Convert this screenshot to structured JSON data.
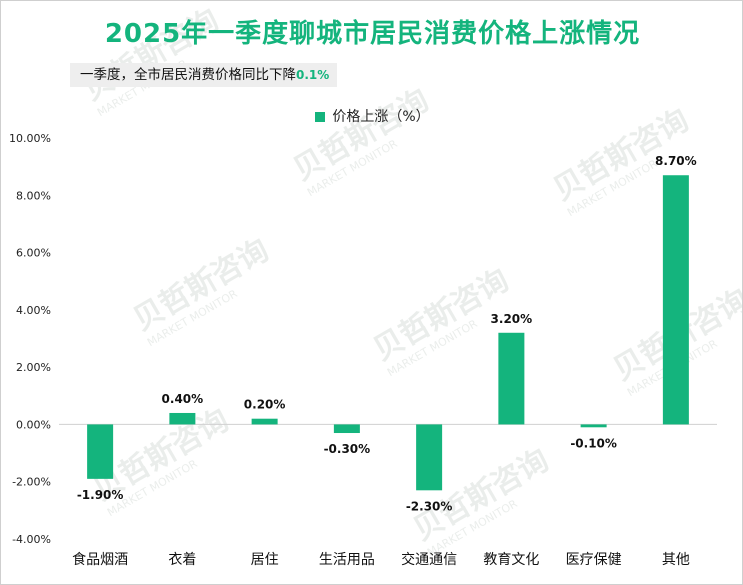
{
  "title": "2025年一季度聊城市居民消费价格上涨情况",
  "subtitle": {
    "text": "一季度，全市居民消费价格同比下降",
    "value": "0.1%"
  },
  "watermark": {
    "cn": "贝哲斯咨询",
    "en": "MARKET MONITOR"
  },
  "colors": {
    "accent": "#14b47d",
    "bar": "#14b47d"
  },
  "chart_data": {
    "type": "bar",
    "title": "2025年一季度聊城市居民消费价格上涨情况",
    "legend": [
      "价格上涨（%）"
    ],
    "legend_position": "top-center",
    "categories": [
      "食品烟酒",
      "衣着",
      "居住",
      "生活用品",
      "交通通信",
      "教育文化",
      "医疗保健",
      "其他"
    ],
    "series": [
      {
        "name": "价格上涨（%）",
        "values": [
          -1.9,
          0.4,
          0.2,
          -0.3,
          -2.3,
          3.2,
          -0.1,
          8.7
        ]
      }
    ],
    "data_labels": [
      "-1.90%",
      "0.40%",
      "0.20%",
      "-0.30%",
      "-2.30%",
      "3.20%",
      "-0.10%",
      "8.70%"
    ],
    "y_ticks": [
      "10.00%",
      "8.00%",
      "6.00%",
      "4.00%",
      "2.00%",
      "0.00%",
      "-2.00%",
      "-4.00%"
    ],
    "ylim": [
      -4,
      10
    ],
    "grid": false,
    "xlabel": "",
    "ylabel": ""
  }
}
